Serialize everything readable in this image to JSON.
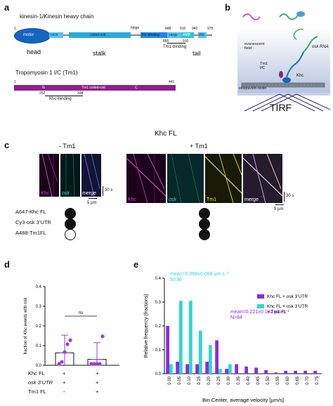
{
  "panel_a": {
    "letter": "a",
    "kinesin_title": "kinesin-1/Kinesin heavy chain",
    "khc_start": "1",
    "khc_domains": {
      "motor": "motor",
      "neck": "neck",
      "coiled_coil": "coiled-coil",
      "hinge": "hinge",
      "khc_binding": "Klc-binding",
      "cargo": "cargo",
      "amb": "AMB",
      "iak": "IAK"
    },
    "khc_numbers": {
      "n848": "848",
      "n910": "910",
      "n940": "940",
      "n975": "975",
      "n855": "855",
      "n910b": "910"
    },
    "tm1_binding": "Tm1-binding",
    "region_labels": {
      "head": "head",
      "stalk": "stalk",
      "tail": "tail"
    },
    "tm_title": "Tropomyosin 1 I/C (Tm1)",
    "tm_start": "1",
    "tm_end": "441",
    "tm_domains": {
      "n": "N",
      "coiled": "Tm1 coiled-coil",
      "c": "C"
    },
    "tm_numbers": {
      "n252": "252",
      "n334": "334"
    },
    "khc_binding_label": "Khc-binding"
  },
  "panel_b": {
    "letter": "b",
    "evanescent": "evanescent field",
    "osk_rna": "osk RNA",
    "tm1": "Tm1 I/C",
    "khc": "Khc",
    "streptavidin": "streptavidin-biotin",
    "tirf": "TIRF"
  },
  "panel_c": {
    "letter": "c",
    "title": "Khc FL",
    "minus_tm1": "- Tm1",
    "plus_tm1": "+ Tm1",
    "left_labels": [
      "Khc",
      "osk",
      "merge"
    ],
    "right_labels": [
      "Khc",
      "osk",
      "Tm1",
      "merge"
    ],
    "time_scale": "30 s",
    "space_scale": "5 µm",
    "conditions": [
      "A647-Khc FL",
      "Cy3-osk 3’UTR",
      "A488-Tm1FL"
    ],
    "dots_minus": [
      true,
      true,
      false
    ],
    "dots_plus": [
      true,
      true,
      true
    ]
  },
  "panel_d": {
    "letter": "d",
    "ylabel": "fraction of Khc events with osk",
    "yticks": [
      "0.0",
      "0.1",
      "0.2",
      "0.3",
      "0.4"
    ],
    "sig": "ns",
    "row_labels": [
      "Khc FL",
      "osk 3’UTR",
      "Tm1 FL"
    ],
    "col1_marks": [
      "+",
      "+",
      "-"
    ],
    "col2_marks": [
      "+",
      "+",
      "+"
    ],
    "bars": [
      {
        "mean": 0.063,
        "sd_low": 0.0,
        "sd_high": 0.153,
        "points": [
          0.0,
          0.01,
          0.06,
          0.1,
          0.12
        ],
        "color": "#9b3fd4"
      },
      {
        "mean": 0.03,
        "sd_low": 0.0,
        "sd_high": 0.115,
        "points": [
          0.0,
          0.0,
          0.0,
          0.0,
          0.14
        ],
        "color": "#9b3fd4"
      }
    ]
  },
  "chart_data": {
    "type": "bar",
    "panel_letter": "e",
    "xlabel": "Bin Center, average velocity [µm/s]",
    "ylabel": "Relative frequency (fractions)",
    "ylim": [
      0,
      0.4
    ],
    "yticks": [
      "0.0",
      "0.1",
      "0.2",
      "0.3",
      "0.4"
    ],
    "categories": [
      "0.00",
      "0.05",
      "0.10",
      "0.15",
      "0.20",
      "0.25",
      "0.30",
      "0.35",
      "0.40",
      "0.45",
      "0.50",
      "0.55",
      "0.60",
      "0.65",
      "0.70",
      "0.75"
    ],
    "series": [
      {
        "name": "Khc FL + osk 3’UTR",
        "color": "#8a2be2",
        "values": [
          0.2,
          0.05,
          0.04,
          0.04,
          0.05,
          0.14,
          0.02,
          0.04,
          0.03,
          0.025,
          0.015,
          0.005,
          0.012,
          0.012,
          0.012,
          0.012
        ]
      },
      {
        "name": "Khc FL + osk 3’UTR + Tm1 FL",
        "color": "#2fd8d2",
        "values": [
          0.04,
          0.305,
          0.305,
          0.18,
          0.12,
          0.02,
          0.04,
          0.0,
          0.0,
          0.0,
          0.0,
          0.0,
          0.0,
          0.0,
          0.0,
          0.0
        ]
      }
    ],
    "annotations": [
      {
        "text": "mean=0.068±0.068 µm s⁻¹",
        "color": "#2fd8d2"
      },
      {
        "text": "N=36",
        "color": "#2fd8d2"
      },
      {
        "text": "mean=0.221±0.182 µm s⁻¹",
        "color": "#8a2be2"
      },
      {
        "text": "N=84",
        "color": "#8a2be2"
      }
    ],
    "legend_placement": "top-right"
  }
}
